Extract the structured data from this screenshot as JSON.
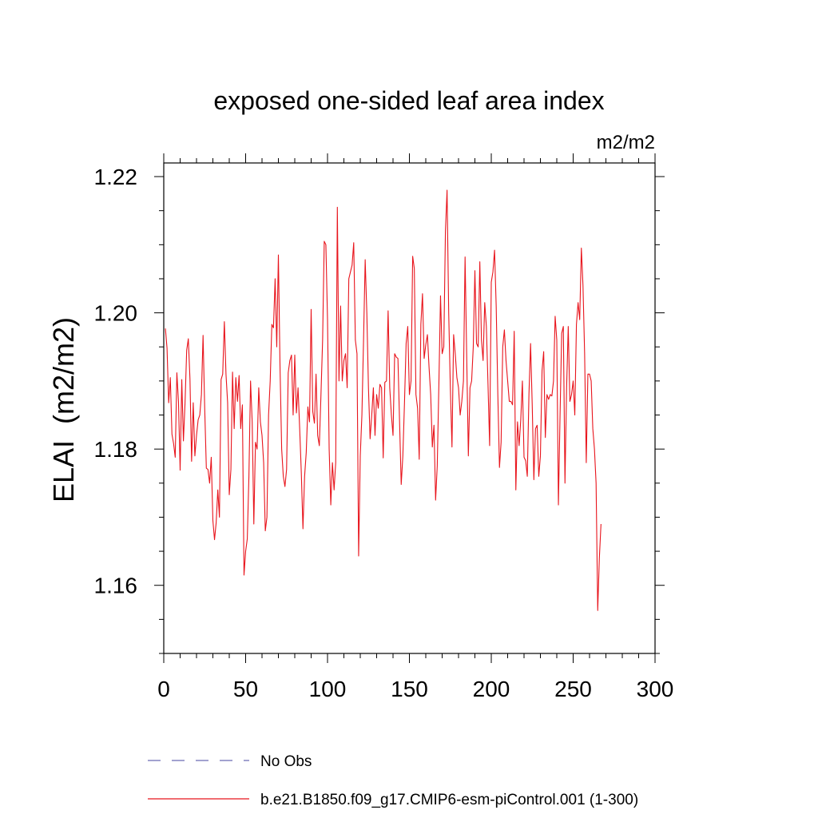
{
  "chart_data": {
    "type": "line",
    "title": "exposed one-sided leaf area index",
    "units": "m2/m2",
    "ylabel": "ELAI  (m2/m2)",
    "xlabel": "",
    "xlim": [
      0,
      300
    ],
    "ylim": [
      1.15,
      1.222
    ],
    "x_ticks": [
      0,
      50,
      100,
      150,
      200,
      250,
      300
    ],
    "x_tick_labels": [
      "0",
      "50",
      "100",
      "150",
      "200",
      "250",
      "300"
    ],
    "y_ticks": [
      1.16,
      1.18,
      1.2,
      1.22
    ],
    "y_tick_labels": [
      "1.16",
      "1.18",
      "1.20",
      "1.22"
    ],
    "grid": false,
    "legend_position": "bottom",
    "series": [
      {
        "name": "No Obs",
        "color": "#6a6ab5",
        "style": "dashed",
        "values": []
      },
      {
        "name": "b.e21.B1850.f09_g17.CMIP6-esm-piControl.001 (1-300)",
        "color": "#e8141c",
        "style": "solid",
        "x_start": 1,
        "x_step": 1,
        "values": [
          1.1977,
          1.1948,
          1.1868,
          1.1905,
          1.1822,
          1.1808,
          1.1788,
          1.1912,
          1.1869,
          1.1769,
          1.1902,
          1.1812,
          1.1868,
          1.1945,
          1.1962,
          1.1903,
          1.1782,
          1.1868,
          1.179,
          1.182,
          1.1843,
          1.185,
          1.188,
          1.1967,
          1.186,
          1.1772,
          1.177,
          1.175,
          1.1788,
          1.1695,
          1.1667,
          1.1692,
          1.174,
          1.17,
          1.1902,
          1.191,
          1.1987,
          1.191,
          1.1868,
          1.1733,
          1.177,
          1.1913,
          1.183,
          1.1905,
          1.187,
          1.1908,
          1.183,
          1.1865,
          1.1615,
          1.165,
          1.1668,
          1.176,
          1.19,
          1.184,
          1.169,
          1.181,
          1.18,
          1.189,
          1.184,
          1.182,
          1.178,
          1.168,
          1.17,
          1.185,
          1.19,
          1.1983,
          1.1978,
          1.205,
          1.195,
          1.2085,
          1.192,
          1.18,
          1.176,
          1.1745,
          1.177,
          1.1912,
          1.193,
          1.1938,
          1.185,
          1.1938,
          1.1853,
          1.189,
          1.183,
          1.1765,
          1.1683,
          1.176,
          1.1795,
          1.1862,
          1.184,
          1.2005,
          1.1855,
          1.1838,
          1.191,
          1.182,
          1.1805,
          1.188,
          1.196,
          1.2105,
          1.21,
          1.199,
          1.18,
          1.1718,
          1.178,
          1.174,
          1.178,
          1.2155,
          1.19,
          1.201,
          1.19,
          1.193,
          1.194,
          1.189,
          1.205,
          1.206,
          1.207,
          1.2103,
          1.196,
          1.194,
          1.1643,
          1.179,
          1.185,
          1.196,
          1.2078,
          1.2,
          1.189,
          1.1815,
          1.185,
          1.189,
          1.182,
          1.188,
          1.186,
          1.1895,
          1.189,
          1.1787,
          1.1898,
          1.19,
          1.2003,
          1.189,
          1.185,
          1.182,
          1.194,
          1.1935,
          1.1933,
          1.184,
          1.1748,
          1.179,
          1.1868,
          1.1955,
          1.198,
          1.188,
          1.19,
          1.2083,
          1.2065,
          1.188,
          1.186,
          1.1785,
          1.1983,
          1.2028,
          1.1933,
          1.1953,
          1.1968,
          1.192,
          1.188,
          1.1803,
          1.1835,
          1.1725,
          1.1775,
          1.1895,
          1.2025,
          1.194,
          1.195,
          1.212,
          1.218,
          1.2,
          1.189,
          1.1803,
          1.1968,
          1.194,
          1.1905,
          1.189,
          1.185,
          1.187,
          1.19,
          1.2082,
          1.1935,
          1.179,
          1.189,
          1.19,
          1.195,
          1.2062,
          1.1955,
          1.195,
          1.2075,
          1.196,
          1.193,
          1.2015,
          1.198,
          1.1895,
          1.1805,
          1.2045,
          1.206,
          1.2092,
          1.201,
          1.188,
          1.1773,
          1.181,
          1.195,
          1.1975,
          1.193,
          1.19,
          1.187,
          1.187,
          1.1865,
          1.1973,
          1.174,
          1.184,
          1.1805,
          1.1843,
          1.19,
          1.1788,
          1.1783,
          1.176,
          1.188,
          1.1955,
          1.1865,
          1.1755,
          1.183,
          1.1835,
          1.176,
          1.179,
          1.1915,
          1.1943,
          1.1817,
          1.188,
          1.1873,
          1.188,
          1.1878,
          1.19,
          1.1995,
          1.196,
          1.1718,
          1.185,
          1.197,
          1.198,
          1.175,
          1.189,
          1.198,
          1.187,
          1.188,
          1.19,
          1.185,
          1.1983,
          1.2015,
          1.199,
          1.2095,
          1.204,
          1.194,
          1.178,
          1.191,
          1.191,
          1.19,
          1.183,
          1.18,
          1.175,
          1.1563,
          1.164,
          1.169
        ]
      }
    ]
  }
}
